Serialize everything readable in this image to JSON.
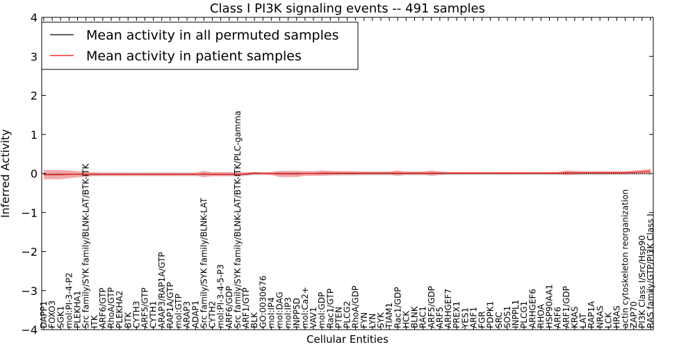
{
  "chart_data": {
    "type": "line",
    "title": "Class I PI3K signaling events -- 491 samples",
    "xlabel": "Cellular Entities",
    "ylabel": "Inferred Activity",
    "ylim": [
      -4,
      4
    ],
    "yticks": [
      -4,
      -3,
      -2,
      -1,
      0,
      1,
      2,
      3,
      4
    ],
    "grid": false,
    "legend_position": "top-left",
    "categories": [
      "DAPP1",
      "FOXO3",
      "SGK1",
      "mol:PI-3-4-P2",
      "PLEKHA1",
      "Src family/SYK family/BLNK-LAT/BTK-ITK",
      "ITK",
      "ARF6/GTP",
      "RhoA/GTP",
      "PLEKHA2",
      "BTK",
      "CYTH3",
      "ARF5/GTP",
      "CYTH1",
      "ARAP3/RAP1A/GTP",
      "RAP1A/GTP",
      "mol:GTP",
      "ARAP3",
      "ADAP1",
      "Src family/SYK family/BLNK-LAT",
      "CYTH2",
      "mol:PI-3-4-5-P3",
      "ARF6/GDP",
      "Src family/SYK family/BLNK-LAT/BTK-ITK/PLC-gamma",
      "ARF1/GTP",
      "BLK",
      "GO:0030676",
      "mol:IP4",
      "mol:DAG",
      "mol:IP3",
      "INPP5D",
      "mol:Ca2+",
      "VAV1",
      "mol:GDP",
      "Rac1/GTP",
      "PTEN",
      "PLCG2",
      "RhoA/GDP",
      "FYN",
      "LYN",
      "SYK",
      "TIAM1",
      "Rac1/GDP",
      "HCK",
      "BLNK",
      "RAC1",
      "ARF5/GDP",
      "ARF5",
      "ARHGEF7",
      "PREX1",
      "YES1",
      "ARF1",
      "FGR",
      "PDPK1",
      "SRC",
      "SOS1",
      "INPPL1",
      "PLCG1",
      "ARHGEF6",
      "RHOA",
      "HSP90AA1",
      "ARF6",
      "ARF1/GDP",
      "KRAS",
      "LAT",
      "RAP1A",
      "NRAS",
      "LCK",
      "HRAS",
      "actin cytoskeleton reorganization",
      "ZAP70",
      "PI3K Class I/Src/Hsp90",
      "RAS family/GTP/PI3K Class I"
    ],
    "series": [
      {
        "name": "Mean activity in all permuted samples",
        "color": "#000000",
        "band_color": "#bbbbbb",
        "values": [
          -0.02,
          -0.02,
          -0.02,
          -0.02,
          -0.02,
          -0.02,
          -0.02,
          -0.02,
          -0.02,
          -0.02,
          -0.02,
          -0.02,
          -0.02,
          -0.02,
          -0.02,
          -0.02,
          -0.02,
          -0.02,
          -0.02,
          -0.02,
          -0.02,
          -0.02,
          -0.02,
          -0.02,
          -0.02,
          0,
          0,
          0,
          0,
          0,
          0,
          0,
          0,
          0,
          0,
          0,
          0,
          0,
          0,
          0,
          0,
          0,
          0,
          0,
          0,
          0,
          0,
          0,
          0,
          0,
          0,
          0,
          0,
          0,
          0,
          0,
          0,
          0,
          0,
          0,
          0,
          0,
          0,
          0,
          0,
          0,
          0,
          0,
          0,
          0,
          0,
          0,
          0
        ],
        "band": [
          0.05,
          0.05,
          0.05,
          0.05,
          0.05,
          0.05,
          0.05,
          0.05,
          0.05,
          0.05,
          0.05,
          0.05,
          0.05,
          0.05,
          0.05,
          0.05,
          0.05,
          0.05,
          0.05,
          0.05,
          0.05,
          0.05,
          0.05,
          0.05,
          0.05,
          0.04,
          0.04,
          0.04,
          0.05,
          0.05,
          0.05,
          0.05,
          0.05,
          0.05,
          0.05,
          0.05,
          0.05,
          0.05,
          0.05,
          0.05,
          0.05,
          0.05,
          0.05,
          0.05,
          0.05,
          0.05,
          0.05,
          0.05,
          0.04,
          0.04,
          0.04,
          0.04,
          0.04,
          0.04,
          0.04,
          0.04,
          0.04,
          0.04,
          0.04,
          0.04,
          0.04,
          0.04,
          0.05,
          0.04,
          0.04,
          0.04,
          0.04,
          0.04,
          0.04,
          0.04,
          0.04,
          0.04,
          0.05
        ]
      },
      {
        "name": "Mean activity in patient samples",
        "color": "#ff0000",
        "band_color": "#ee8888",
        "values": [
          -0.03,
          -0.03,
          -0.03,
          -0.02,
          -0.02,
          -0.02,
          -0.02,
          -0.02,
          -0.02,
          -0.02,
          -0.02,
          -0.02,
          -0.02,
          -0.02,
          -0.02,
          -0.02,
          -0.02,
          -0.02,
          -0.02,
          -0.01,
          -0.02,
          -0.02,
          -0.02,
          -0.02,
          -0.01,
          0.01,
          0,
          0,
          -0.01,
          -0.01,
          -0.01,
          0,
          0,
          0.01,
          0.01,
          0.01,
          0.01,
          0.01,
          0.01,
          0.01,
          0.01,
          0.01,
          0.01,
          0.01,
          0.01,
          0.01,
          0.01,
          0.01,
          0.01,
          0.01,
          0.01,
          0.01,
          0.01,
          0.01,
          0.01,
          0.01,
          0.01,
          0.01,
          0.01,
          0.01,
          0.01,
          0.01,
          0.02,
          0.02,
          0.02,
          0.02,
          0.02,
          0.02,
          0.02,
          0.02,
          0.03,
          0.04,
          0.06
        ],
        "band": [
          0.12,
          0.12,
          0.12,
          0.1,
          0.08,
          0.06,
          0.05,
          0.04,
          0.04,
          0.04,
          0.04,
          0.04,
          0.04,
          0.04,
          0.04,
          0.04,
          0.04,
          0.04,
          0.04,
          0.08,
          0.05,
          0.05,
          0.05,
          0.05,
          0.04,
          0.03,
          0.03,
          0.04,
          0.08,
          0.08,
          0.08,
          0.06,
          0.06,
          0.07,
          0.06,
          0.05,
          0.05,
          0.05,
          0.04,
          0.04,
          0.04,
          0.04,
          0.07,
          0.04,
          0.04,
          0.04,
          0.07,
          0.04,
          0.03,
          0.03,
          0.03,
          0.03,
          0.03,
          0.03,
          0.03,
          0.03,
          0.03,
          0.03,
          0.03,
          0.03,
          0.03,
          0.03,
          0.06,
          0.05,
          0.04,
          0.04,
          0.04,
          0.04,
          0.04,
          0.04,
          0.05,
          0.05,
          0.06
        ]
      }
    ]
  }
}
